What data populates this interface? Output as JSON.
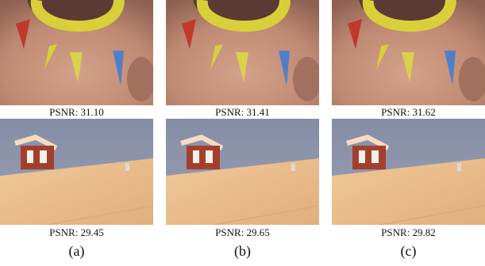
{
  "rows": [
    {
      "subject": "face",
      "psnr": [
        "PSNR: 31.10",
        "PSNR: 31.41",
        "PSNR: 31.62"
      ]
    },
    {
      "subject": "house-roof",
      "psnr": [
        "PSNR: 29.45",
        "PSNR: 29.65",
        "PSNR: 29.82"
      ]
    }
  ],
  "column_labels": [
    "(a)",
    "(b)",
    "(c)"
  ],
  "colors": {
    "skin": "#c8957e",
    "face_paint_yellow": "#d8cf3a",
    "face_paint_red": "#c0392b",
    "face_paint_blue": "#4f7fc8",
    "sky": "#8e96ad",
    "roof": "#e9b98a",
    "wall_red": "#a3402c"
  }
}
